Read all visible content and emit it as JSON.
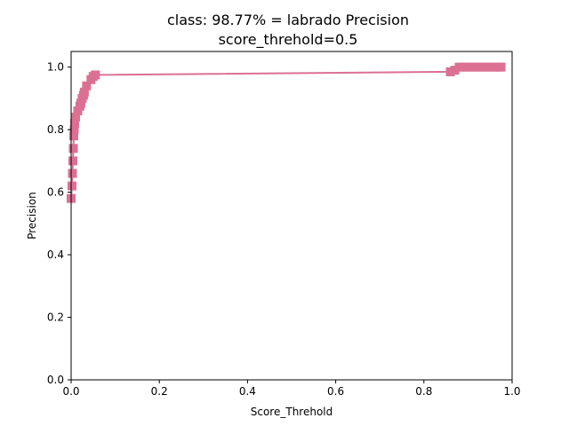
{
  "chart_data": {
    "type": "line",
    "title_line1": "class: 98.77% = labrado Precision",
    "title_line2": "score_threhold=0.5",
    "xlabel": "Score_Threhold",
    "ylabel": "Precision",
    "xlim": [
      0.0,
      1.0
    ],
    "ylim": [
      0.0,
      1.05
    ],
    "xticks": [
      "0.0",
      "0.2",
      "0.4",
      "0.6",
      "0.8",
      "1.0"
    ],
    "yticks": [
      "0.0",
      "0.2",
      "0.4",
      "0.6",
      "0.8",
      "1.0"
    ],
    "grid": false,
    "color": "#db7093",
    "marker": "square",
    "series": [
      {
        "x": [
          0.0,
          0.002,
          0.003,
          0.004,
          0.005,
          0.006,
          0.007,
          0.008,
          0.01,
          0.015,
          0.02,
          0.022,
          0.025,
          0.028,
          0.03,
          0.035,
          0.045,
          0.05,
          0.055,
          0.86,
          0.87,
          0.88,
          0.89,
          0.9,
          0.91,
          0.92,
          0.93,
          0.94,
          0.95,
          0.96,
          0.97,
          0.975
        ],
        "y": [
          0.58,
          0.62,
          0.66,
          0.7,
          0.74,
          0.78,
          0.8,
          0.82,
          0.84,
          0.86,
          0.875,
          0.885,
          0.9,
          0.91,
          0.92,
          0.94,
          0.96,
          0.97,
          0.975,
          0.985,
          0.99,
          1.0,
          1.0,
          1.0,
          1.0,
          1.0,
          1.0,
          1.0,
          1.0,
          1.0,
          1.0,
          1.0
        ]
      }
    ]
  }
}
